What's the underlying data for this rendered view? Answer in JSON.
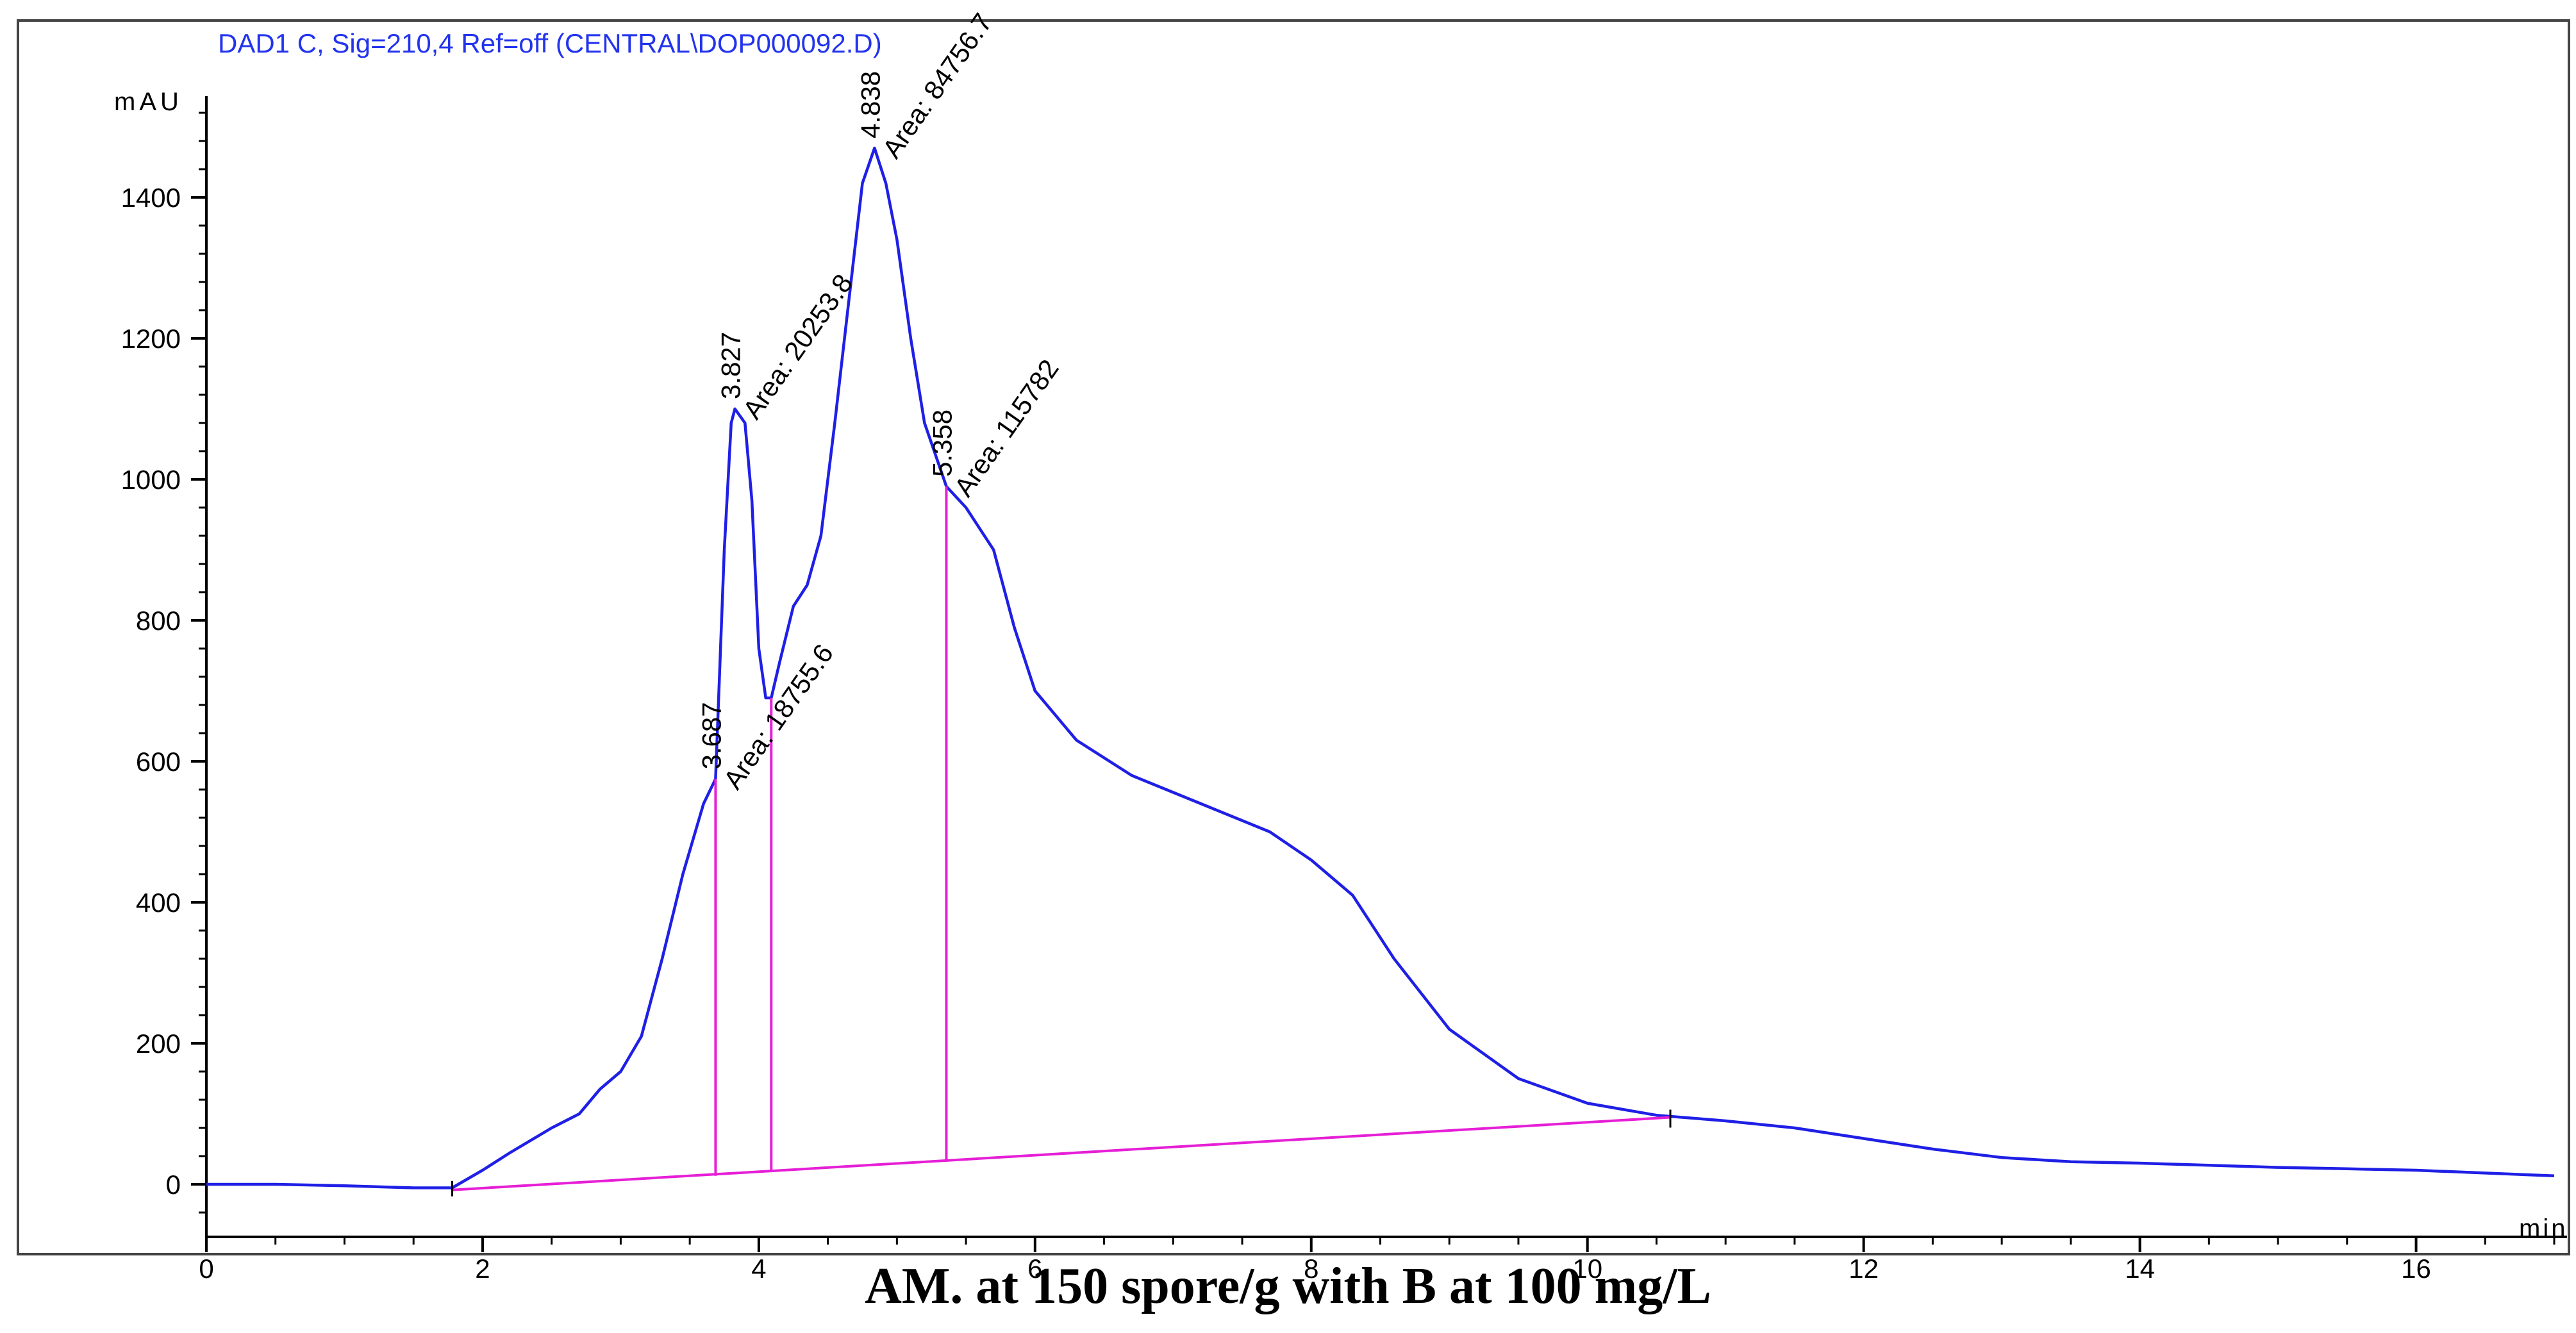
{
  "chart_data": {
    "type": "line",
    "title": "DAD1 C, Sig=210,4 Ref=off (CENTRAL\\DOP000092.D)",
    "caption": "AM. at 150 spore/g with B at 100 mg/L",
    "xlabel": "min",
    "ylabel": "mAU",
    "xlim": [
      0,
      17
    ],
    "ylim": [
      -80,
      1580
    ],
    "x_ticks": [
      0,
      2,
      4,
      6,
      8,
      10,
      12,
      14,
      16
    ],
    "y_ticks": [
      0,
      200,
      400,
      600,
      800,
      1000,
      1200,
      1400
    ],
    "signal_color": "#1f1fe6",
    "integration_color": "#e61fd6",
    "series": [
      {
        "name": "DAD1 C signal",
        "points": [
          [
            0,
            0
          ],
          [
            0.5,
            0
          ],
          [
            1.0,
            -2
          ],
          [
            1.5,
            -5
          ],
          [
            1.78,
            -5
          ],
          [
            2.0,
            20
          ],
          [
            2.2,
            45
          ],
          [
            2.5,
            80
          ],
          [
            2.7,
            100
          ],
          [
            2.85,
            135
          ],
          [
            3.0,
            160
          ],
          [
            3.15,
            210
          ],
          [
            3.3,
            320
          ],
          [
            3.45,
            440
          ],
          [
            3.6,
            540
          ],
          [
            3.687,
            575
          ],
          [
            3.75,
            900
          ],
          [
            3.8,
            1080
          ],
          [
            3.827,
            1100
          ],
          [
            3.9,
            1080
          ],
          [
            3.95,
            970
          ],
          [
            4.0,
            760
          ],
          [
            4.05,
            690
          ],
          [
            4.09,
            690
          ],
          [
            4.15,
            740
          ],
          [
            4.25,
            820
          ],
          [
            4.35,
            850
          ],
          [
            4.45,
            920
          ],
          [
            4.55,
            1080
          ],
          [
            4.65,
            1250
          ],
          [
            4.75,
            1420
          ],
          [
            4.838,
            1470
          ],
          [
            4.92,
            1420
          ],
          [
            5.0,
            1340
          ],
          [
            5.1,
            1200
          ],
          [
            5.2,
            1080
          ],
          [
            5.358,
            990
          ],
          [
            5.5,
            960
          ],
          [
            5.7,
            900
          ],
          [
            5.85,
            790
          ],
          [
            6.0,
            700
          ],
          [
            6.3,
            630
          ],
          [
            6.7,
            580
          ],
          [
            7.2,
            540
          ],
          [
            7.7,
            500
          ],
          [
            8.0,
            460
          ],
          [
            8.3,
            410
          ],
          [
            8.6,
            320
          ],
          [
            9.0,
            220
          ],
          [
            9.5,
            150
          ],
          [
            10.0,
            115
          ],
          [
            10.5,
            98
          ],
          [
            11.0,
            90
          ],
          [
            11.5,
            80
          ],
          [
            12.0,
            65
          ],
          [
            12.5,
            50
          ],
          [
            13.0,
            38
          ],
          [
            13.5,
            32
          ],
          [
            14.0,
            30
          ],
          [
            14.5,
            27
          ],
          [
            15.0,
            24
          ],
          [
            15.5,
            22
          ],
          [
            16.0,
            20
          ],
          [
            16.5,
            16
          ],
          [
            17.0,
            12
          ]
        ]
      }
    ],
    "baseline": {
      "from": [
        1.78,
        -8
      ],
      "to": [
        10.6,
        95
      ]
    },
    "drop_lines": [
      {
        "x": 3.687,
        "top": 575,
        "bottom": 12
      },
      {
        "x": 4.09,
        "top": 690,
        "bottom": 18
      },
      {
        "x": 5.358,
        "top": 990,
        "bottom": 32
      }
    ],
    "peak_labels": [
      {
        "rt": "3.687",
        "x": 3.687,
        "y": 585,
        "area": "Area: 18755.6"
      },
      {
        "rt": "3.827",
        "x": 3.827,
        "y": 1110,
        "area": "Area: 20253.8"
      },
      {
        "rt": "4.838",
        "x": 4.838,
        "y": 1480,
        "area": "Area: 84756.7"
      },
      {
        "rt": "5.358",
        "x": 5.358,
        "y": 1000,
        "area": "Area: 115782"
      }
    ]
  }
}
